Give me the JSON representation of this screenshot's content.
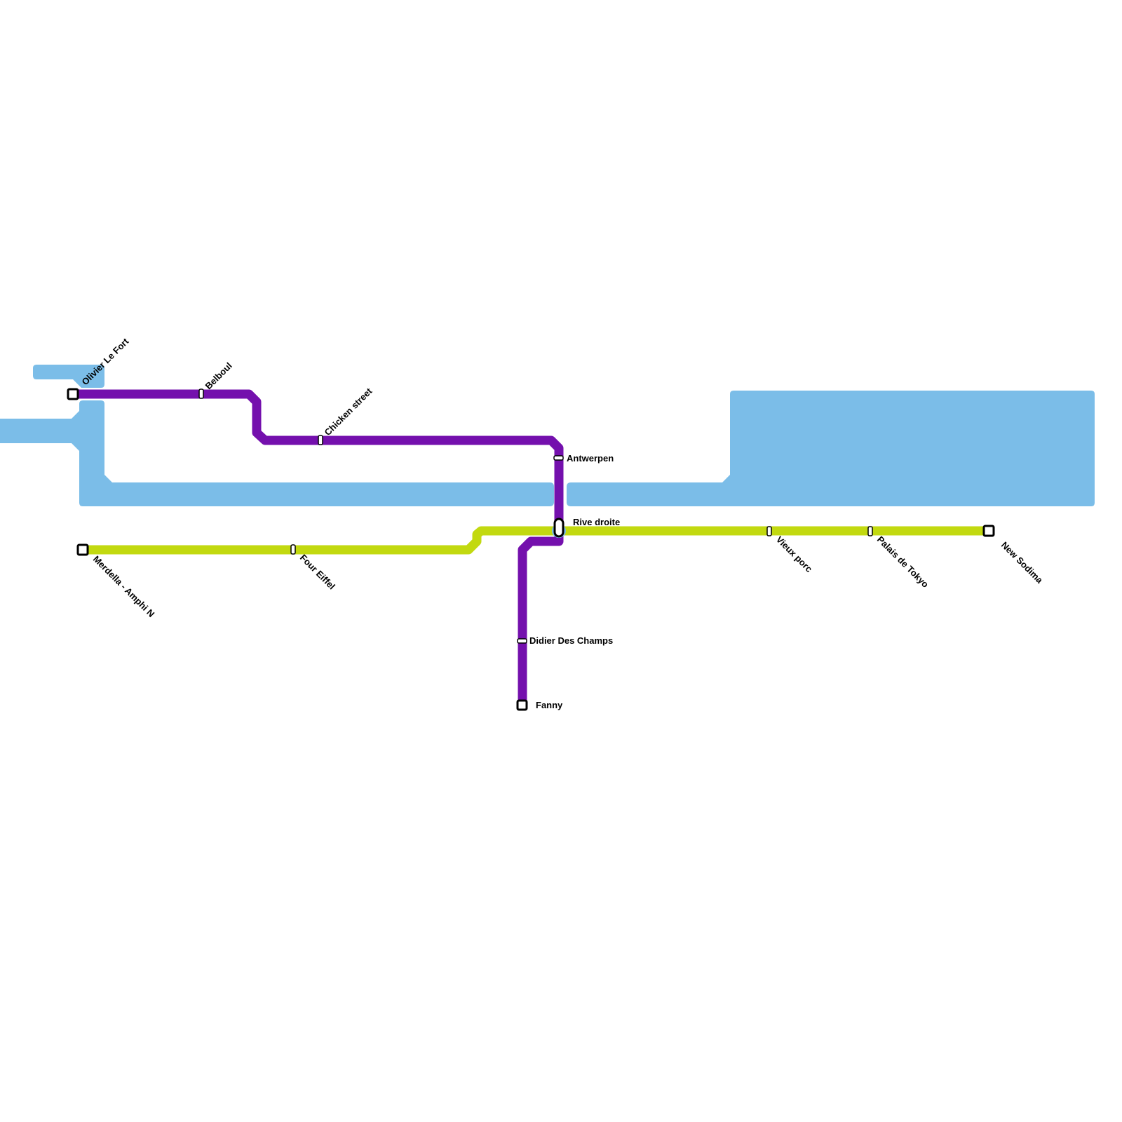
{
  "colors": {
    "water": "#7bbde8",
    "purple_line": "#7410ad",
    "green_line": "#c2d910",
    "background": "#ffffff"
  },
  "stations": {
    "olivier_le_fort": "Olivier Le Fort",
    "belboul": "Belboul",
    "chicken_street": "Chicken street",
    "antwerpen": "Antwerpen",
    "rive_droite": "Rive droite",
    "didier_des_champs": "Didier Des Champs",
    "fanny": "Fanny",
    "merdella": "Merdella - Amphi N",
    "four_eiffel": "Four Eiffel",
    "vieux_porc": "Vieux porc",
    "palais_de_tokyo": "Palais de Tokyo",
    "new_sodima": "New Sodima"
  }
}
